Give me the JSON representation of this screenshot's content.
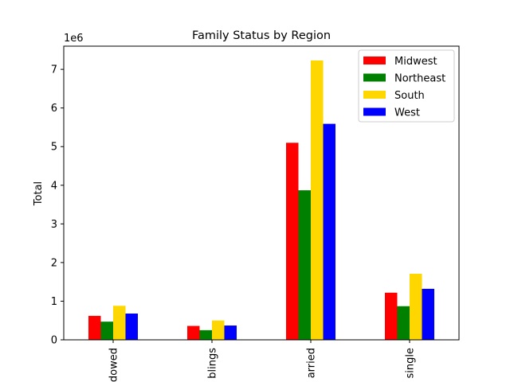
{
  "chart_data": {
    "type": "bar",
    "title": "Family Status by Region",
    "xlabel": "",
    "ylabel": "Total",
    "y_scale_label": "1e6",
    "ylim": [
      0,
      7600000
    ],
    "y_ticks": [
      0,
      1000000,
      2000000,
      3000000,
      4000000,
      5000000,
      6000000,
      7000000
    ],
    "y_tick_labels": [
      "0",
      "1",
      "2",
      "3",
      "4",
      "5",
      "6",
      "7"
    ],
    "categories": [
      "dowed",
      "blings",
      "arried",
      "single"
    ],
    "series": [
      {
        "name": "Midwest",
        "color": "#ff0000",
        "values": [
          620000,
          360000,
          5100000,
          1220000
        ]
      },
      {
        "name": "Northeast",
        "color": "#008000",
        "values": [
          470000,
          250000,
          3870000,
          870000
        ]
      },
      {
        "name": "South",
        "color": "#ffd700",
        "values": [
          880000,
          500000,
          7230000,
          1710000
        ]
      },
      {
        "name": "West",
        "color": "#0000ff",
        "values": [
          680000,
          370000,
          5590000,
          1320000
        ]
      }
    ],
    "legend_position": "top-right",
    "grid": false
  }
}
